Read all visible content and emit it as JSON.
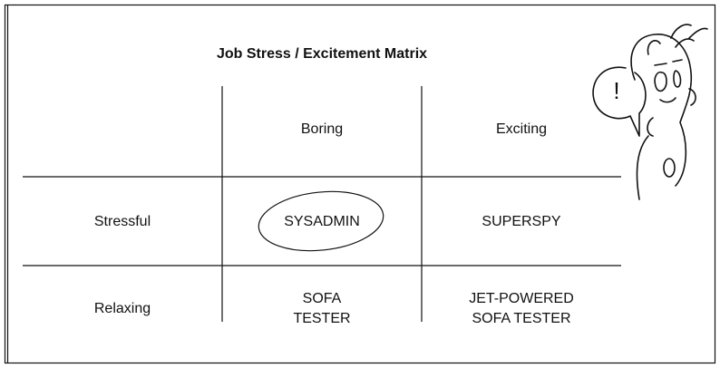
{
  "title": "Job Stress / Excitement Matrix",
  "columns": [
    "Boring",
    "Exciting"
  ],
  "rows": [
    {
      "label": "Stressful",
      "cells": [
        [
          "SYSADMIN"
        ],
        [
          "SUPERSPY"
        ]
      ]
    },
    {
      "label": "Relaxing",
      "cells": [
        [
          "SOFA",
          "TESTER"
        ],
        [
          "JET-POWERED",
          "SOFA TESTER"
        ]
      ]
    }
  ],
  "speech": "!"
}
